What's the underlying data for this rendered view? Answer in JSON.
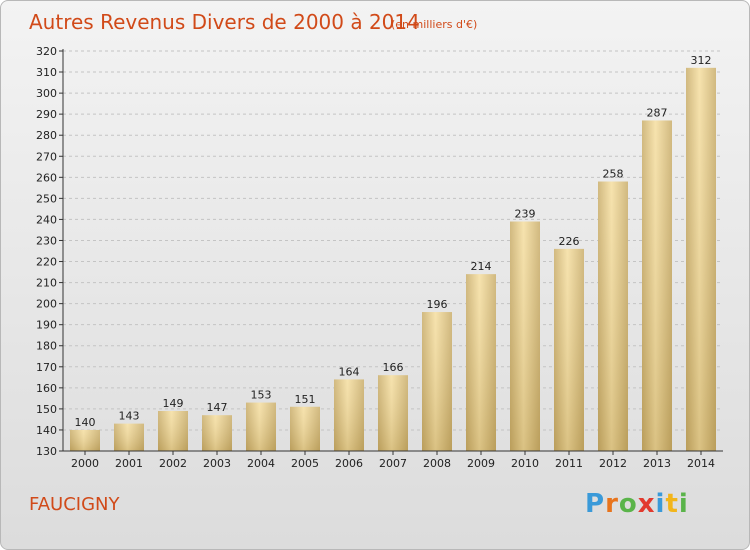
{
  "chart_data": {
    "type": "bar",
    "title": "Autres Revenus Divers de 2000 à 2014",
    "unit_note": "(en milliers d'€)",
    "categories": [
      "2000",
      "2001",
      "2002",
      "2003",
      "2004",
      "2005",
      "2006",
      "2007",
      "2008",
      "2009",
      "2010",
      "2011",
      "2012",
      "2013",
      "2014"
    ],
    "values": [
      140,
      143,
      149,
      147,
      153,
      151,
      164,
      166,
      196,
      214,
      239,
      226,
      258,
      287,
      312
    ],
    "ylim": [
      130,
      320
    ],
    "yticks": [
      130,
      140,
      150,
      160,
      170,
      180,
      190,
      200,
      210,
      220,
      230,
      240,
      250,
      260,
      270,
      280,
      290,
      300,
      310,
      320
    ],
    "grid": "horizontal dashed",
    "bar_color_light": "#f5dea0",
    "bar_color_dark": "#c9ad6a"
  },
  "region_name": "FAUCIGNY",
  "brand": {
    "letters": [
      "P",
      "r",
      "o",
      "x",
      "i",
      "t",
      "i"
    ],
    "colors": [
      "#3a9ad9",
      "#e8741c",
      "#5ab44a",
      "#e23a2e",
      "#3a9ad9",
      "#f2b51a",
      "#5ab44a"
    ]
  },
  "colors": {
    "title": "#d14a19"
  }
}
